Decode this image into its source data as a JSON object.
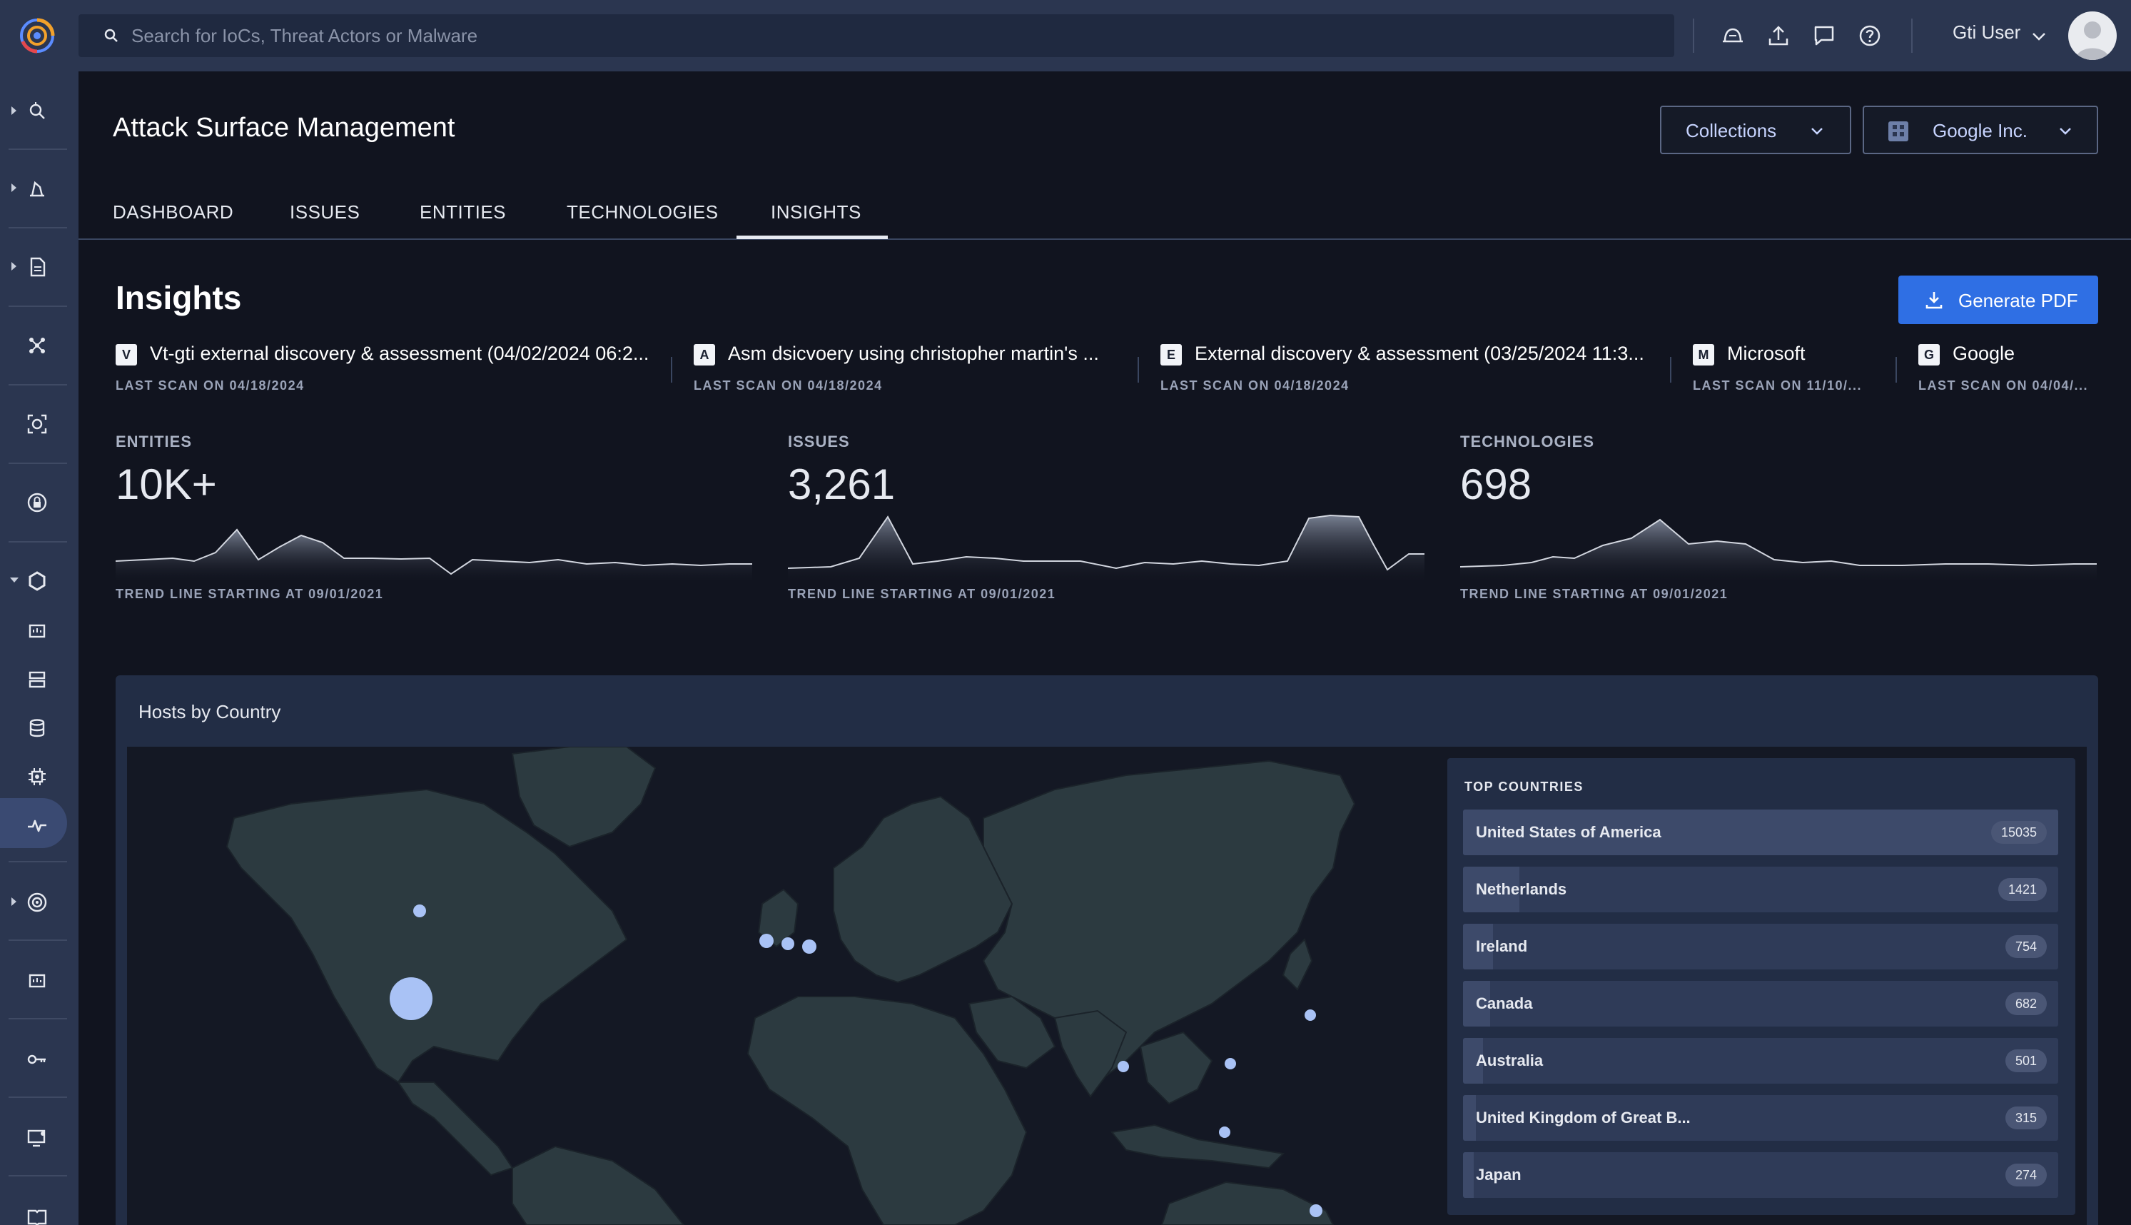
{
  "search": {
    "placeholder": "Search for IoCs, Threat Actors or Malware"
  },
  "user": {
    "name": "Gti User"
  },
  "page": {
    "title": "Attack Surface Management"
  },
  "collections": {
    "label": "Collections"
  },
  "org": {
    "label": "Google Inc."
  },
  "tabs": [
    {
      "label": "DASHBOARD"
    },
    {
      "label": "ISSUES"
    },
    {
      "label": "ENTITIES"
    },
    {
      "label": "TECHNOLOGIES"
    },
    {
      "label": "INSIGHTS",
      "active": true
    }
  ],
  "insights": {
    "title": "Insights",
    "generate_label": "Generate PDF"
  },
  "scans": [
    {
      "badge": "V",
      "name": "Vt-gti external discovery & assessment (04/02/2024 06:2...",
      "date": "LAST SCAN ON 04/18/2024"
    },
    {
      "badge": "A",
      "name": "Asm dsicvoery using christopher martin's ...",
      "date": "LAST SCAN ON 04/18/2024"
    },
    {
      "badge": "E",
      "name": "External discovery & assessment (03/25/2024 11:3...",
      "date": "LAST SCAN ON 04/18/2024"
    },
    {
      "badge": "M",
      "name": "Microsoft",
      "date": "LAST SCAN ON 11/10/..."
    },
    {
      "badge": "G",
      "name": "Google",
      "date": "LAST SCAN ON 04/04/..."
    }
  ],
  "stats": [
    {
      "label": "ENTITIES",
      "value": "10K+",
      "trend": "TREND LINE STARTING AT 09/01/2021"
    },
    {
      "label": "ISSUES",
      "value": "3,261",
      "trend": "TREND LINE STARTING AT 09/01/2021"
    },
    {
      "label": "TECHNOLOGIES",
      "value": "698",
      "trend": "TREND LINE STARTING AT 09/01/2021"
    }
  ],
  "hosts": {
    "title": "Hosts by Country"
  },
  "top_countries": {
    "title": "TOP COUNTRIES",
    "items": [
      {
        "name": "United States of America",
        "count": "15035",
        "share": 1.0
      },
      {
        "name": "Netherlands",
        "count": "1421",
        "share": 0.095
      },
      {
        "name": "Ireland",
        "count": "754",
        "share": 0.05
      },
      {
        "name": "Canada",
        "count": "682",
        "share": 0.045
      },
      {
        "name": "Australia",
        "count": "501",
        "share": 0.033
      },
      {
        "name": "United Kingdom of Great B...",
        "count": "315",
        "share": 0.021
      },
      {
        "name": "Japan",
        "count": "274",
        "share": 0.018
      }
    ]
  },
  "colors": {
    "accent": "#2f6fe4",
    "marker": "#a9c2f5",
    "land": "#2c3a40",
    "sidebar": "#2b3650"
  }
}
